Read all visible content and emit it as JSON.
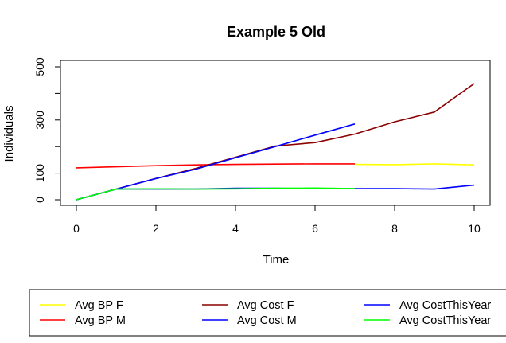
{
  "chart_data": {
    "type": "line",
    "title": "Example 5 Old",
    "xlabel": "Time",
    "ylabel": "Individuals",
    "xlim": [
      0,
      10
    ],
    "ylim": [
      0,
      500
    ],
    "xticks": [
      "0",
      "2",
      "4",
      "6",
      "8",
      "10"
    ],
    "yticks": [
      "0",
      "100",
      "300",
      "500"
    ],
    "xtick_values": [
      0,
      2,
      4,
      6,
      8,
      10
    ],
    "ytick_values": [
      0,
      100,
      300,
      500
    ],
    "yticks_minor": [
      200,
      400
    ],
    "grid": false,
    "legend_position": "bottom",
    "series": [
      {
        "name": "Avg BP F",
        "color": "#ffff00",
        "x": [
          7,
          8,
          9,
          10
        ],
        "y": [
          133,
          132,
          135,
          131
        ]
      },
      {
        "name": "Avg BP M",
        "color": "#ff0000",
        "x": [
          0,
          1,
          2,
          3,
          4,
          5,
          6,
          7
        ],
        "y": [
          120,
          124,
          128,
          131,
          133,
          134,
          135,
          135
        ]
      },
      {
        "name": "Avg Cost F",
        "color": "#8b0000",
        "x": [
          0,
          1,
          2,
          3,
          4,
          5,
          6,
          7,
          8,
          9,
          10
        ],
        "y": [
          0,
          40,
          80,
          118,
          160,
          202,
          215,
          247,
          293,
          330,
          437
        ]
      },
      {
        "name": "Avg Cost M",
        "color": "#0000ff",
        "x": [
          0,
          1,
          2,
          3,
          4,
          5,
          6,
          7
        ],
        "y": [
          0,
          40,
          80,
          115,
          158,
          200,
          243,
          285
        ]
      },
      {
        "name": "Avg CostThisYear",
        "color": "#0000ff",
        "x": [
          0,
          1,
          2,
          3,
          4,
          5,
          6,
          7,
          8,
          9,
          10
        ],
        "y": [
          0,
          40,
          40,
          40,
          43,
          43,
          42,
          42,
          42,
          40,
          55
        ]
      },
      {
        "name": "Avg CostThisYear",
        "color": "#00ff00",
        "x": [
          0,
          1,
          2,
          3,
          4,
          5,
          6,
          7
        ],
        "y": [
          0,
          40,
          41,
          40,
          41,
          43,
          44,
          42
        ]
      }
    ]
  }
}
